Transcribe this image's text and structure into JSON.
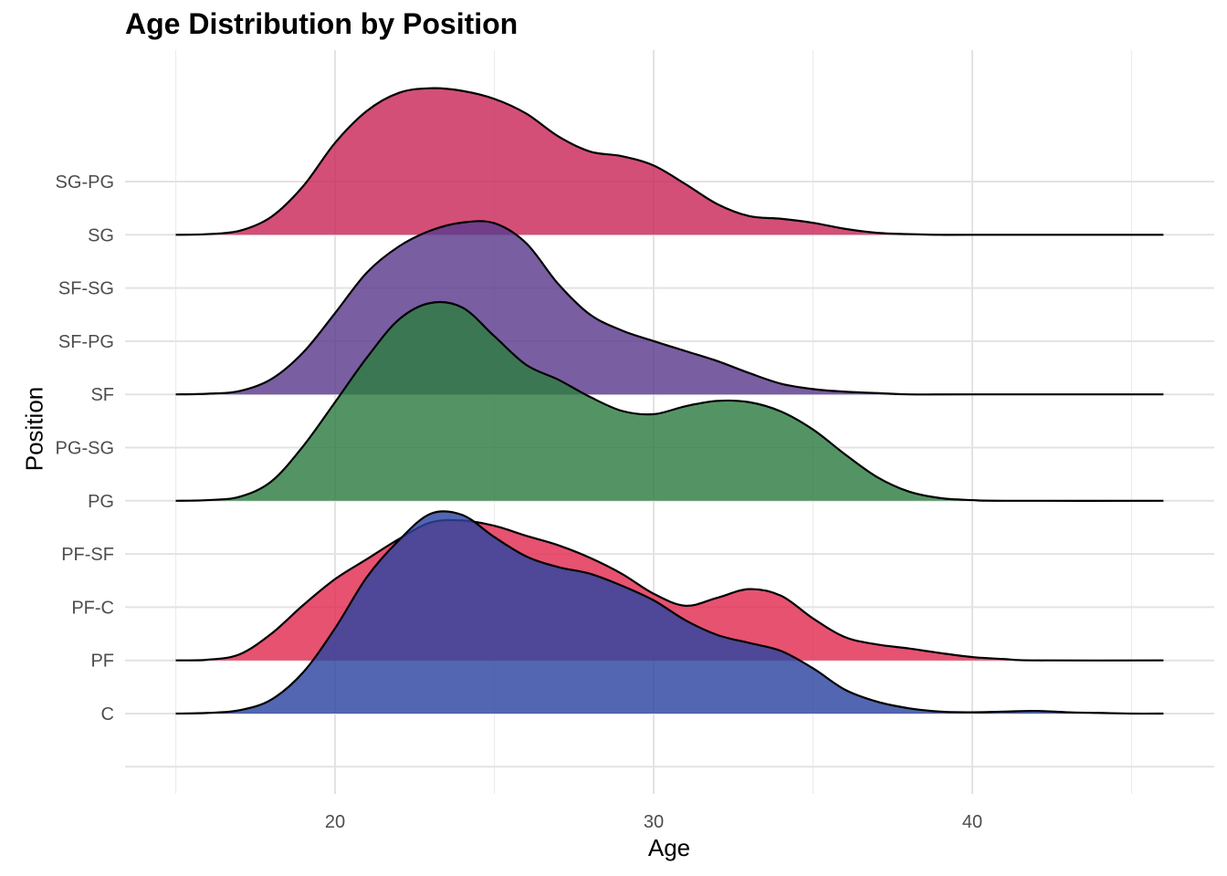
{
  "chart_data": {
    "type": "ridgeline",
    "title": "Age Distribution by Position",
    "xlabel": "Age",
    "ylabel": "Position",
    "x_ticks": [
      20,
      30,
      40
    ],
    "xlim": [
      14.5,
      47.5
    ],
    "categories": [
      "C",
      "PF",
      "PF-C",
      "PF-SF",
      "PG",
      "PG-SG",
      "SF",
      "SF-PG",
      "SF-SG",
      "SG",
      "SG-PG"
    ],
    "grid": true,
    "series": [
      {
        "name": "SG",
        "color": "#c9285a",
        "points": [
          [
            15,
            0
          ],
          [
            16,
            0.01
          ],
          [
            17,
            0.06
          ],
          [
            18,
            0.27
          ],
          [
            19,
            0.73
          ],
          [
            20,
            1.38
          ],
          [
            21,
            1.86
          ],
          [
            22,
            2.13
          ],
          [
            23,
            2.2
          ],
          [
            24,
            2.16
          ],
          [
            25,
            2.04
          ],
          [
            26,
            1.82
          ],
          [
            27,
            1.48
          ],
          [
            28,
            1.25
          ],
          [
            29,
            1.18
          ],
          [
            30,
            1.04
          ],
          [
            31,
            0.76
          ],
          [
            32,
            0.46
          ],
          [
            33,
            0.28
          ],
          [
            34,
            0.24
          ],
          [
            35,
            0.18
          ],
          [
            36,
            0.09
          ],
          [
            37,
            0.03
          ],
          [
            38,
            0.01
          ],
          [
            39,
            0
          ],
          [
            40,
            0
          ],
          [
            46,
            0
          ]
        ]
      },
      {
        "name": "SF",
        "color": "#5c3a8e",
        "points": [
          [
            15,
            0
          ],
          [
            16,
            0.01
          ],
          [
            17,
            0.05
          ],
          [
            18,
            0.23
          ],
          [
            19,
            0.63
          ],
          [
            20,
            1.22
          ],
          [
            21,
            1.83
          ],
          [
            22,
            2.22
          ],
          [
            23,
            2.46
          ],
          [
            24,
            2.58
          ],
          [
            25,
            2.57
          ],
          [
            26,
            2.27
          ],
          [
            27,
            1.66
          ],
          [
            28,
            1.2
          ],
          [
            29,
            0.96
          ],
          [
            30,
            0.8
          ],
          [
            31,
            0.65
          ],
          [
            32,
            0.5
          ],
          [
            33,
            0.32
          ],
          [
            34,
            0.16
          ],
          [
            35,
            0.08
          ],
          [
            36,
            0.04
          ],
          [
            37,
            0.02
          ],
          [
            38,
            0
          ],
          [
            40,
            0
          ],
          [
            46,
            0
          ]
        ]
      },
      {
        "name": "PG",
        "color": "#2e7d42",
        "points": [
          [
            15,
            0
          ],
          [
            16,
            0.01
          ],
          [
            17,
            0.06
          ],
          [
            18,
            0.29
          ],
          [
            19,
            0.82
          ],
          [
            20,
            1.48
          ],
          [
            21,
            2.15
          ],
          [
            22,
            2.72
          ],
          [
            23,
            2.97
          ],
          [
            24,
            2.9
          ],
          [
            25,
            2.47
          ],
          [
            26,
            2.04
          ],
          [
            27,
            1.82
          ],
          [
            28,
            1.56
          ],
          [
            29,
            1.35
          ],
          [
            30,
            1.3
          ],
          [
            31,
            1.42
          ],
          [
            32,
            1.5
          ],
          [
            33,
            1.48
          ],
          [
            34,
            1.34
          ],
          [
            35,
            1.07
          ],
          [
            36,
            0.7
          ],
          [
            37,
            0.36
          ],
          [
            38,
            0.14
          ],
          [
            39,
            0.04
          ],
          [
            40,
            0.01
          ],
          [
            41,
            0
          ],
          [
            46,
            0
          ]
        ]
      },
      {
        "name": "PF",
        "color": "#e02c50",
        "points": [
          [
            15,
            0
          ],
          [
            16,
            0.01
          ],
          [
            17,
            0.09
          ],
          [
            18,
            0.4
          ],
          [
            19,
            0.83
          ],
          [
            20,
            1.22
          ],
          [
            21,
            1.52
          ],
          [
            22,
            1.82
          ],
          [
            23,
            2.07
          ],
          [
            24,
            2.1
          ],
          [
            25,
            2.02
          ],
          [
            26,
            1.87
          ],
          [
            27,
            1.73
          ],
          [
            28,
            1.54
          ],
          [
            29,
            1.3
          ],
          [
            30,
            1.0
          ],
          [
            31,
            0.82
          ],
          [
            32,
            0.94
          ],
          [
            33,
            1.07
          ],
          [
            34,
            0.97
          ],
          [
            35,
            0.63
          ],
          [
            36,
            0.35
          ],
          [
            37,
            0.24
          ],
          [
            38,
            0.18
          ],
          [
            39,
            0.11
          ],
          [
            40,
            0.05
          ],
          [
            41,
            0.02
          ],
          [
            42,
            0
          ],
          [
            46,
            0
          ]
        ]
      },
      {
        "name": "C",
        "color": "#2d44a0",
        "points": [
          [
            15,
            0
          ],
          [
            16,
            0.01
          ],
          [
            17,
            0.05
          ],
          [
            18,
            0.21
          ],
          [
            19,
            0.62
          ],
          [
            20,
            1.28
          ],
          [
            21,
            2.05
          ],
          [
            22,
            2.6
          ],
          [
            23,
            3.0
          ],
          [
            24,
            2.98
          ],
          [
            25,
            2.65
          ],
          [
            26,
            2.36
          ],
          [
            27,
            2.2
          ],
          [
            28,
            2.1
          ],
          [
            29,
            1.92
          ],
          [
            30,
            1.7
          ],
          [
            31,
            1.4
          ],
          [
            32,
            1.18
          ],
          [
            33,
            1.06
          ],
          [
            34,
            0.94
          ],
          [
            35,
            0.68
          ],
          [
            36,
            0.36
          ],
          [
            37,
            0.18
          ],
          [
            38,
            0.08
          ],
          [
            39,
            0.03
          ],
          [
            40,
            0.02
          ],
          [
            41,
            0.03
          ],
          [
            42,
            0.04
          ],
          [
            43,
            0.02
          ],
          [
            44,
            0.01
          ],
          [
            45,
            0
          ],
          [
            46,
            0
          ]
        ]
      }
    ]
  }
}
